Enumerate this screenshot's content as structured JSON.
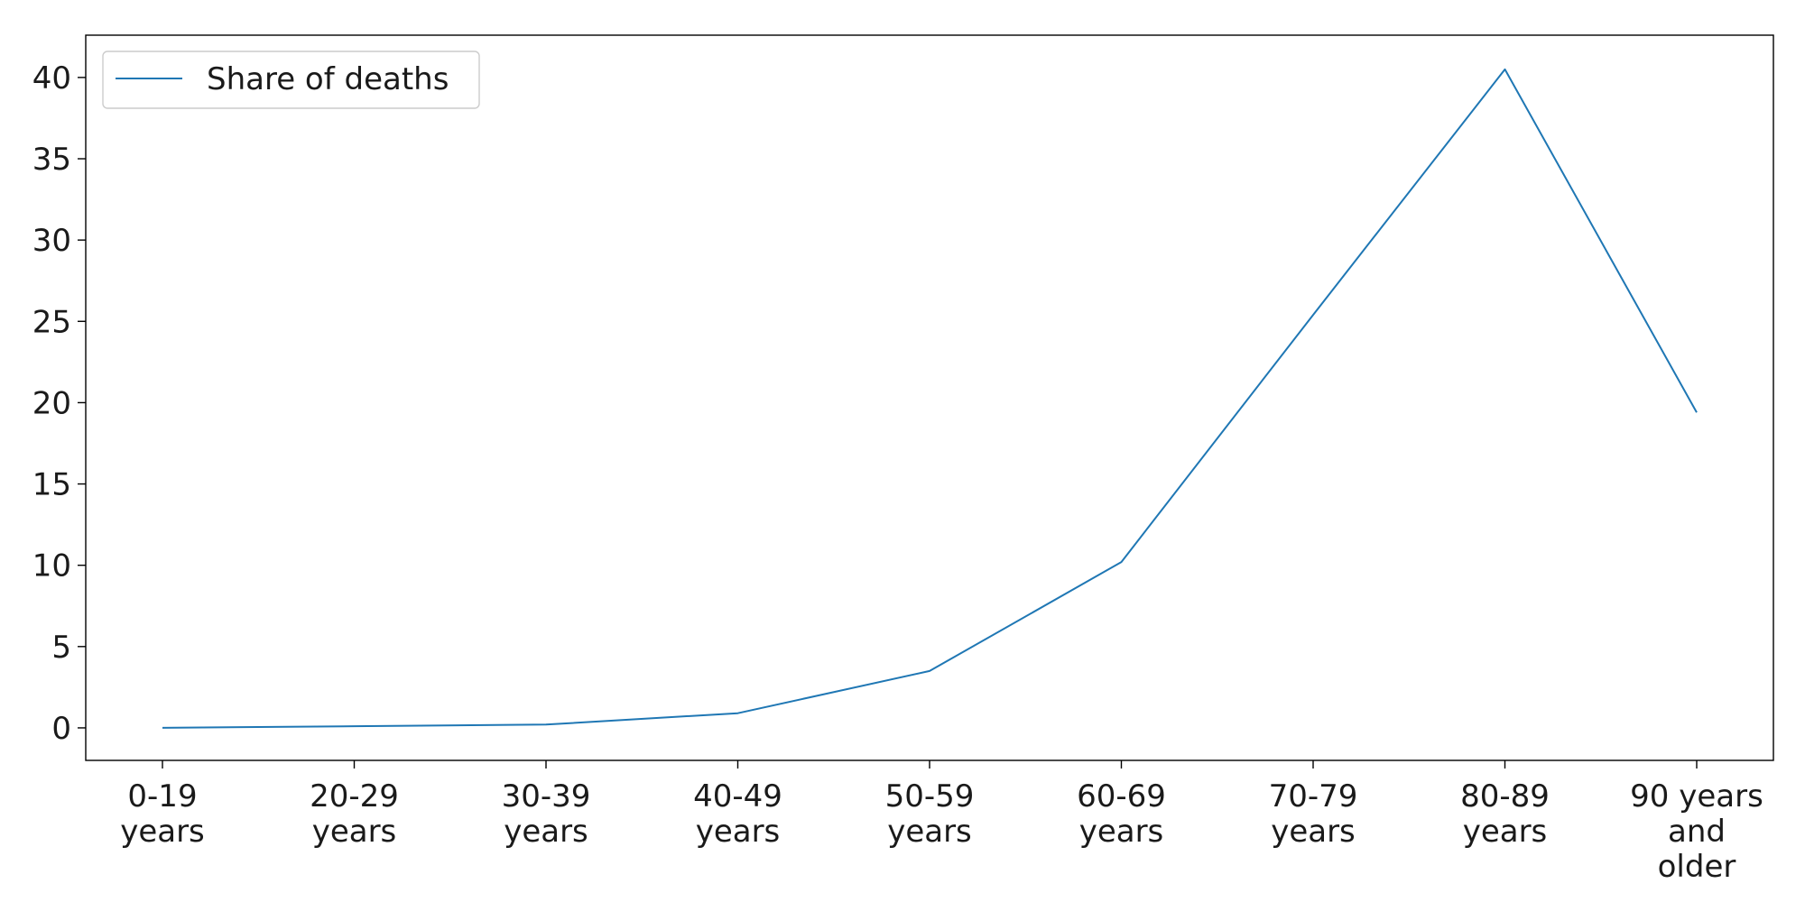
{
  "chart_data": {
    "type": "line",
    "title": "",
    "xlabel": "",
    "ylabel": "",
    "categories": [
      [
        "0-19",
        "years"
      ],
      [
        "20-29",
        "years"
      ],
      [
        "30-39",
        "years"
      ],
      [
        "40-49",
        "years"
      ],
      [
        "50-59",
        "years"
      ],
      [
        "60-69",
        "years"
      ],
      [
        "70-79",
        "years"
      ],
      [
        "80-89",
        "years"
      ],
      [
        "90 years",
        "and",
        "older"
      ]
    ],
    "series": [
      {
        "name": "Share of deaths",
        "color": "#1f77b4",
        "values": [
          0.0,
          0.1,
          0.2,
          0.9,
          3.5,
          10.2,
          25.4,
          40.5,
          19.4
        ]
      }
    ],
    "ylim": [
      -2.0,
      42.6
    ],
    "yticks": [
      0,
      5,
      10,
      15,
      20,
      25,
      30,
      35,
      40
    ],
    "grid": false,
    "legend_position": "top-left"
  }
}
